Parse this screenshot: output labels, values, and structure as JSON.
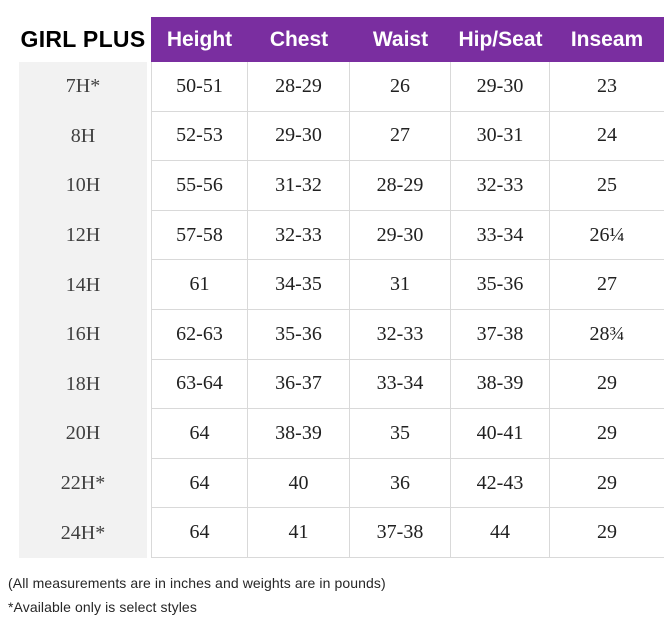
{
  "chart_data": {
    "type": "table",
    "title": "GIRL PLUS",
    "columns": [
      "Height",
      "Chest",
      "Waist",
      "Hip/Seat",
      "Inseam"
    ],
    "rows": [
      {
        "size": "7H*",
        "values": [
          "50-51",
          "28-29",
          "26",
          "29-30",
          "23"
        ]
      },
      {
        "size": "8H",
        "values": [
          "52-53",
          "29-30",
          "27",
          "30-31",
          "24"
        ]
      },
      {
        "size": "10H",
        "values": [
          "55-56",
          "31-32",
          "28-29",
          "32-33",
          "25"
        ]
      },
      {
        "size": "12H",
        "values": [
          "57-58",
          "32-33",
          "29-30",
          "33-34",
          "26¼"
        ]
      },
      {
        "size": "14H",
        "values": [
          "61",
          "34-35",
          "31",
          "35-36",
          "27"
        ]
      },
      {
        "size": "16H",
        "values": [
          "62-63",
          "35-36",
          "32-33",
          "37-38",
          "28¾"
        ]
      },
      {
        "size": "18H",
        "values": [
          "63-64",
          "36-37",
          "33-34",
          "38-39",
          "29"
        ]
      },
      {
        "size": "20H",
        "values": [
          "64",
          "38-39",
          "35",
          "40-41",
          "29"
        ]
      },
      {
        "size": "22H*",
        "values": [
          "64",
          "40",
          "36",
          "42-43",
          "29"
        ]
      },
      {
        "size": "24H*",
        "values": [
          "64",
          "41",
          "37-38",
          "44",
          "29"
        ]
      }
    ],
    "footnotes": {
      "units": "(All measurements are in inches and weights are in pounds)",
      "availability": "*Available only is select styles"
    }
  },
  "colors": {
    "header_bg": "#7A2EA0",
    "label_bg": "#F2F2F2",
    "gridline": "#D9D9D9",
    "header_text": "#FFFFFF",
    "cell_text": "#212121"
  }
}
